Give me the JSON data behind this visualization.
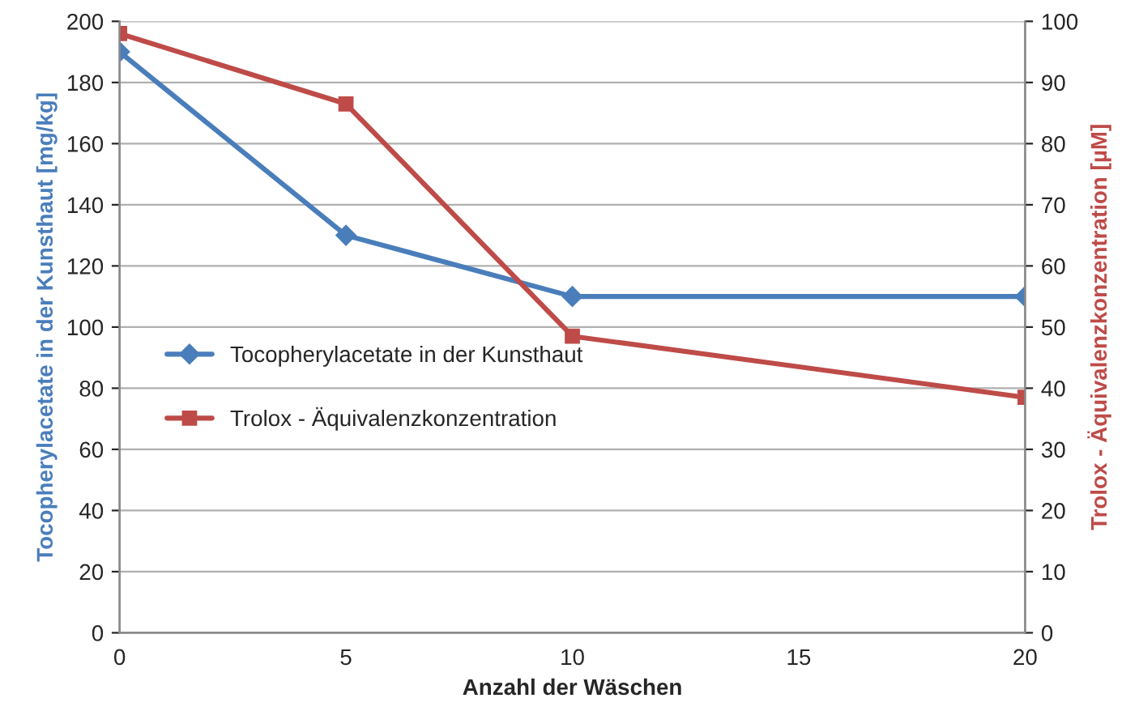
{
  "chart_data": {
    "type": "line",
    "xlabel": "Anzahl der Wäschen",
    "ylabel": "Tocopherylacetate in der Kunsthaut [mg/kg]",
    "y2label": "Trolox - Äquivalenzkonzentration [µM]",
    "series": [
      {
        "name": "Tocopherylacetate in der Kunsthaut",
        "color": "#4a7ebb",
        "marker": "diamond",
        "x": [
          0,
          5,
          10,
          20
        ],
        "values": [
          190,
          130,
          110,
          110
        ]
      },
      {
        "name": "Trolox - Äquivalenzkonzentration",
        "color": "#be4b48",
        "marker": "square",
        "axis": "y2",
        "x": [
          0,
          5,
          10,
          20
        ],
        "values": [
          98,
          86.5,
          48.5,
          38.5
        ]
      }
    ],
    "xlim": [
      0,
      20
    ],
    "xticks": [
      0,
      5,
      10,
      15,
      20
    ],
    "ylim": [
      0,
      200
    ],
    "yticks": [
      0,
      20,
      40,
      60,
      80,
      100,
      120,
      140,
      160,
      180,
      200
    ],
    "y2lim": [
      0,
      100
    ],
    "y2ticks": [
      0,
      10,
      20,
      30,
      40,
      50,
      60,
      70,
      80,
      90,
      100
    ],
    "grid": "y",
    "legend": "left",
    "line_style": "solid"
  }
}
